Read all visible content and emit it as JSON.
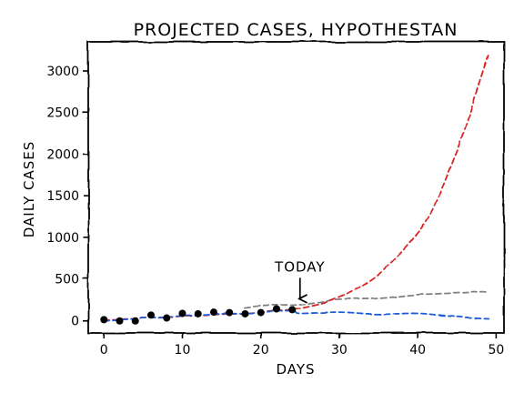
{
  "chart_data": {
    "type": "line",
    "title": "PROJECTED CASES, HYPOTHESTAN",
    "xlabel": "DAYS",
    "ylabel": "DAILY CASES",
    "xlim": [
      -2,
      51
    ],
    "ylim": [
      -150,
      3350
    ],
    "xticks": [
      0,
      10,
      20,
      30,
      40,
      50
    ],
    "xtick_labels": [
      "0",
      "10",
      "20",
      "30",
      "40",
      "50"
    ],
    "yticks": [
      0,
      500,
      1000,
      1500,
      2000,
      2500,
      3000
    ],
    "ytick_labels": [
      "0",
      "500",
      "1000",
      "1500",
      "2000",
      "2500",
      "3000"
    ],
    "grid": false,
    "legend": "none",
    "annotation": {
      "text": "TODAY",
      "x": 25,
      "y": 130,
      "text_y": 590
    },
    "observed": {
      "x": [
        0,
        2,
        4,
        6,
        8,
        10,
        12,
        14,
        16,
        18,
        20,
        22,
        24
      ],
      "y": [
        10,
        -5,
        -5,
        65,
        30,
        85,
        80,
        100,
        95,
        80,
        95,
        140,
        130
      ]
    },
    "series": [
      {
        "color": "#d62728",
        "style": "dashed",
        "x": [
          0,
          5,
          10,
          15,
          20,
          25,
          30,
          35,
          40,
          42,
          44,
          46,
          48,
          49
        ],
        "y": [
          15,
          30,
          50,
          70,
          100,
          150,
          280,
          550,
          1050,
          1350,
          1800,
          2300,
          2900,
          3180
        ]
      },
      {
        "color": "#808080",
        "style": "dashed",
        "x": [
          18,
          20,
          25,
          30,
          35,
          40,
          45,
          49
        ],
        "y": [
          160,
          180,
          195,
          250,
          265,
          310,
          330,
          350
        ]
      },
      {
        "color": "#1f5bd6",
        "style": "dashed",
        "x": [
          0,
          5,
          10,
          15,
          20,
          24,
          25,
          30,
          35,
          40,
          45,
          49
        ],
        "y": [
          5,
          30,
          55,
          75,
          95,
          120,
          85,
          100,
          75,
          85,
          45,
          25
        ]
      }
    ]
  }
}
